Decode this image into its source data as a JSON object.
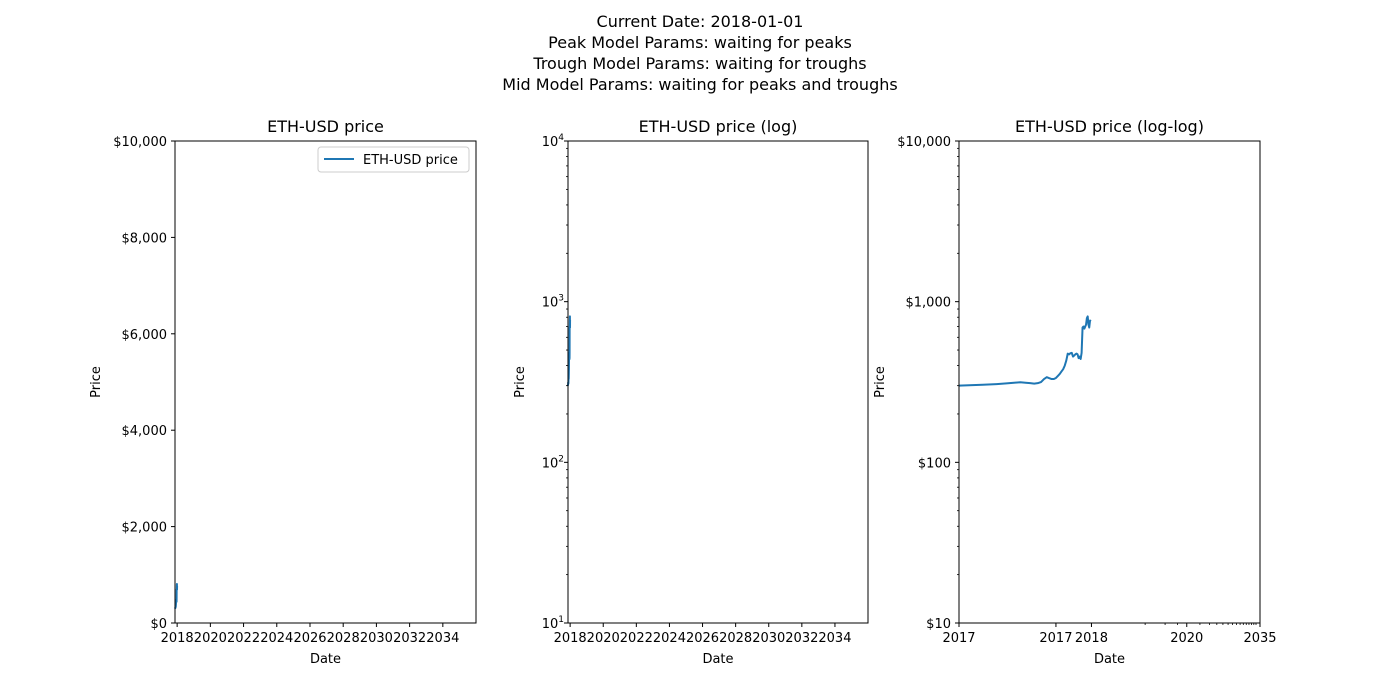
{
  "suptitle": {
    "line1": "Current Date: 2018-01-01",
    "line2": "Peak Model Params: waiting for peaks",
    "line3": "Trough Model Params: waiting for troughs",
    "line4": "Mid Model Params: waiting for peaks and troughs"
  },
  "colors": {
    "series": "#1f77b4",
    "axis": "#000000",
    "background": "#ffffff"
  },
  "chart_data": [
    {
      "type": "line",
      "title": "ETH-USD price",
      "xlabel": "Date",
      "ylabel": "Price",
      "xscale": "linear",
      "yscale": "linear",
      "xlim": [
        "2017-11-15",
        "2035-12-31"
      ],
      "ylim": [
        0,
        10000
      ],
      "xticks": [
        "2018",
        "2020",
        "2022",
        "2024",
        "2026",
        "2028",
        "2030",
        "2032",
        "2034"
      ],
      "yticks": [
        {
          "value": 0,
          "label": "$0"
        },
        {
          "value": 2000,
          "label": "$2,000"
        },
        {
          "value": 4000,
          "label": "$4,000"
        },
        {
          "value": 6000,
          "label": "$6,000"
        },
        {
          "value": 8000,
          "label": "$8,000"
        },
        {
          "value": 10000,
          "label": "$10,000"
        }
      ],
      "legend": {
        "entries": [
          "ETH-USD price"
        ],
        "placement": "top-right"
      },
      "grid": false,
      "series": [
        {
          "name": "ETH-USD price",
          "ref": "eth"
        }
      ]
    },
    {
      "type": "line",
      "title": "ETH-USD price (log)",
      "xlabel": "Date",
      "ylabel": "Price",
      "xscale": "linear",
      "yscale": "log",
      "xlim": [
        "2017-11-15",
        "2035-12-31"
      ],
      "ylim": [
        10,
        10000
      ],
      "xticks": [
        "2018",
        "2020",
        "2022",
        "2024",
        "2026",
        "2028",
        "2030",
        "2032",
        "2034"
      ],
      "yticks": [
        {
          "value": 10,
          "base": "10",
          "exp": "1"
        },
        {
          "value": 100,
          "base": "10",
          "exp": "2"
        },
        {
          "value": 1000,
          "base": "10",
          "exp": "3"
        },
        {
          "value": 10000,
          "base": "10",
          "exp": "4"
        }
      ],
      "grid": false,
      "series": [
        {
          "ref": "eth"
        }
      ]
    },
    {
      "type": "line",
      "title": "ETH-USD price (log-log)",
      "xlabel": "Date",
      "ylabel": "Price",
      "xscale": "log",
      "yscale": "log",
      "xlim": [
        "2017-11-15",
        "2035-12-31"
      ],
      "ylim": [
        10,
        10000
      ],
      "xticks": [
        {
          "date": "2017-11-15",
          "label": "2017"
        },
        {
          "date": "2017-12-01",
          "label": "2017"
        },
        {
          "date": "2018-01-01",
          "label": "2018"
        },
        {
          "date": "2020-01-01",
          "label": "2020"
        },
        {
          "date": "2035-12-31",
          "label": "2035"
        }
      ],
      "yticks": [
        {
          "value": 10,
          "label": "$10"
        },
        {
          "value": 100,
          "label": "$100"
        },
        {
          "value": 1000,
          "label": "$1,000"
        },
        {
          "value": 10000,
          "label": "$10,000"
        }
      ],
      "grid": false,
      "series": [
        {
          "ref": "eth"
        }
      ]
    }
  ],
  "series_data": {
    "eth": {
      "x": [
        "2017-11-15",
        "2017-11-16",
        "2017-11-17",
        "2017-11-18",
        "2017-11-19",
        "2017-11-20",
        "2017-11-21",
        "2017-11-22",
        "2017-11-23",
        "2017-11-24",
        "2017-11-25",
        "2017-11-26",
        "2017-11-27",
        "2017-11-28",
        "2017-11-29",
        "2017-11-30",
        "2017-12-01",
        "2017-12-02",
        "2017-12-03",
        "2017-12-04",
        "2017-12-05",
        "2017-12-06",
        "2017-12-07",
        "2017-12-08",
        "2017-12-09",
        "2017-12-10",
        "2017-12-11",
        "2017-12-12",
        "2017-12-13",
        "2017-12-14",
        "2017-12-15",
        "2017-12-16",
        "2017-12-17",
        "2017-12-18",
        "2017-12-19",
        "2017-12-20",
        "2017-12-21",
        "2017-12-22",
        "2017-12-23",
        "2017-12-24",
        "2017-12-25",
        "2017-12-26",
        "2017-12-27",
        "2017-12-28",
        "2017-12-29",
        "2017-12-30",
        "2017-12-31"
      ],
      "y": [
        300,
        304,
        307,
        310,
        313,
        315,
        313,
        311,
        309,
        311,
        316,
        330,
        339,
        334,
        330,
        330,
        335,
        345,
        355,
        368,
        380,
        400,
        430,
        475,
        470,
        478,
        480,
        455,
        462,
        470,
        475,
        470,
        445,
        455,
        440,
        480,
        690,
        700,
        680,
        700,
        720,
        790,
        810,
        720,
        690,
        760,
        770
      ]
    }
  }
}
